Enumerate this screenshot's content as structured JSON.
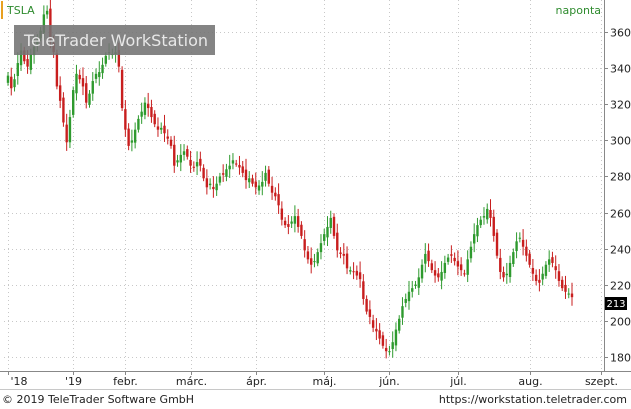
{
  "header": {
    "symbol": "TSLA",
    "interval": "naponta",
    "watermark": "TeleTrader WorkStation",
    "watermark_bold": "WorkStation"
  },
  "footer": {
    "copyright": "© 2019 TeleTrader Software GmbH",
    "url": "https://workstation.teletrader.com"
  },
  "colors": {
    "up": "#2e9a2e",
    "down": "#c81e1e",
    "grid": "#c8c8c8",
    "accent_border": "#e8a020",
    "interval_text": "#2e8b2e",
    "last_price_bg": "#000000"
  },
  "chart_data": {
    "type": "candlestick",
    "title": "",
    "ylim": [
      172,
      378
    ],
    "y_ticks": [
      180,
      200,
      220,
      240,
      260,
      280,
      300,
      320,
      340,
      360
    ],
    "x_tick_labels": [
      "'18",
      "'19",
      "febr.",
      "márc.",
      "ápr.",
      "máj.",
      "jún.",
      "júl.",
      "aug.",
      "szept."
    ],
    "x_tick_index": [
      0,
      20,
      36,
      56,
      76,
      97,
      117,
      138,
      160,
      182
    ],
    "last_price": "213",
    "grid": true,
    "closes": [
      336,
      329,
      334,
      343,
      350,
      344,
      341,
      348,
      352,
      355,
      361,
      370,
      372,
      356,
      349,
      330,
      322,
      310,
      299,
      313,
      328,
      337,
      334,
      330,
      321,
      326,
      333,
      337,
      338,
      342,
      347,
      349,
      348,
      349,
      341,
      318,
      306,
      297,
      300,
      306,
      312,
      316,
      321,
      318,
      313,
      309,
      306,
      307,
      304,
      301,
      297,
      286,
      289,
      292,
      294,
      291,
      286,
      285,
      288,
      286,
      279,
      274,
      276,
      273,
      276,
      280,
      281,
      284,
      286,
      289,
      287,
      285,
      282,
      278,
      279,
      276,
      274,
      275,
      277,
      282,
      276,
      271,
      269,
      264,
      256,
      253,
      252,
      255,
      258,
      252,
      247,
      239,
      234,
      231,
      233,
      238,
      243,
      248,
      252,
      257,
      247,
      239,
      237,
      236,
      229,
      228,
      227,
      225,
      223,
      212,
      205,
      202,
      196,
      194,
      190,
      186,
      183,
      183,
      188,
      195,
      201,
      208,
      212,
      216,
      218,
      220,
      224,
      231,
      237,
      233,
      228,
      225,
      224,
      227,
      232,
      235,
      236,
      233,
      230,
      228,
      226,
      234,
      241,
      248,
      253,
      256,
      258,
      262,
      257,
      247,
      236,
      227,
      224,
      226,
      232,
      238,
      244,
      246,
      241,
      236,
      231,
      226,
      222,
      221,
      226,
      231,
      234,
      232,
      228,
      222,
      218,
      216,
      215,
      213
    ]
  }
}
